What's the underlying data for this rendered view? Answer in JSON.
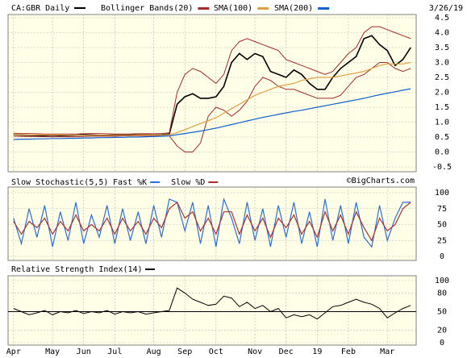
{
  "chart_data": [
    {
      "type": "line",
      "title": "CA:GBR Daily",
      "date": "3/26/19",
      "categories": [
        "Apr",
        null,
        null,
        null,
        null,
        "May",
        null,
        null,
        null,
        "Jun",
        null,
        null,
        null,
        "Jul",
        null,
        null,
        null,
        null,
        "Aug",
        null,
        null,
        null,
        "Sep",
        null,
        null,
        null,
        "Oct",
        null,
        null,
        null,
        null,
        "Nov",
        null,
        null,
        null,
        "Dec",
        null,
        null,
        null,
        "19",
        null,
        null,
        null,
        "Feb",
        null,
        null,
        null,
        null,
        "Mar",
        null,
        null,
        null
      ],
      "ylim": [
        -0.5,
        4.5
      ],
      "yticks": [
        4.5,
        {
          "value": 4,
          "label": "4.0"
        },
        3.5,
        {
          "value": 3,
          "label": "3.0"
        },
        2.5,
        {
          "value": 2,
          "label": "2.0"
        },
        1.5,
        {
          "value": 1,
          "label": "1.0"
        },
        0.5,
        {
          "value": 0,
          "label": "0.0"
        },
        -0.5
      ],
      "grid": true,
      "series": [
        {
          "name": "CA:GBR Daily",
          "color": "#000000",
          "values": [
            0.58,
            0.57,
            0.56,
            0.55,
            0.55,
            0.56,
            0.55,
            0.55,
            0.56,
            0.58,
            0.57,
            0.56,
            0.56,
            0.57,
            0.57,
            0.57,
            0.58,
            0.58,
            0.57,
            0.58,
            0.6,
            1.6,
            1.85,
            1.95,
            1.8,
            1.8,
            1.85,
            2.2,
            3.0,
            3.3,
            3.1,
            3.3,
            3.2,
            2.7,
            2.6,
            2.5,
            2.75,
            2.6,
            2.3,
            2.1,
            2.1,
            2.5,
            2.8,
            3.0,
            3.2,
            3.8,
            3.9,
            3.6,
            3.4,
            2.9,
            3.1,
            3.5
          ]
        },
        {
          "name": "Bollinger Bands(20)",
          "color": "#a52a2a",
          "upper": [
            0.63,
            0.62,
            0.62,
            0.61,
            0.6,
            0.6,
            0.6,
            0.6,
            0.6,
            0.61,
            0.62,
            0.62,
            0.61,
            0.6,
            0.6,
            0.6,
            0.61,
            0.61,
            0.61,
            0.62,
            0.64,
            2.0,
            2.6,
            2.8,
            2.7,
            2.5,
            2.3,
            2.6,
            3.4,
            3.7,
            3.8,
            3.7,
            3.6,
            3.5,
            3.4,
            3.1,
            3.0,
            2.9,
            2.8,
            2.7,
            2.6,
            2.7,
            3.0,
            3.3,
            3.5,
            4.0,
            4.2,
            4.2,
            4.1,
            4.0,
            3.9,
            3.8
          ],
          "lower": [
            0.53,
            0.52,
            0.52,
            0.52,
            0.51,
            0.51,
            0.51,
            0.51,
            0.51,
            0.52,
            0.53,
            0.53,
            0.53,
            0.53,
            0.54,
            0.54,
            0.55,
            0.55,
            0.55,
            0.55,
            0.54,
            0.2,
            0.0,
            0.0,
            0.3,
            1.2,
            1.5,
            1.4,
            1.2,
            1.4,
            1.7,
            2.2,
            2.5,
            2.4,
            2.2,
            2.1,
            2.1,
            2.0,
            1.9,
            1.8,
            1.8,
            1.8,
            1.9,
            2.2,
            2.5,
            2.6,
            2.8,
            3.0,
            3.0,
            2.8,
            2.7,
            2.8
          ]
        },
        {
          "name": "SMA(100)",
          "color": "#e0a040",
          "values": [
            0.58,
            0.58,
            0.57,
            0.57,
            0.57,
            0.57,
            0.57,
            0.56,
            0.56,
            0.56,
            0.56,
            0.56,
            0.56,
            0.56,
            0.56,
            0.56,
            0.57,
            0.57,
            0.57,
            0.57,
            0.58,
            0.65,
            0.75,
            0.85,
            0.95,
            1.05,
            1.15,
            1.3,
            1.45,
            1.6,
            1.75,
            1.9,
            2.0,
            2.1,
            2.2,
            2.25,
            2.3,
            2.4,
            2.45,
            2.5,
            2.5,
            2.5,
            2.55,
            2.6,
            2.65,
            2.7,
            2.8,
            2.9,
            2.95,
            2.95,
            2.95,
            3.0
          ]
        },
        {
          "name": "SMA(200)",
          "color": "#1060d0",
          "values": [
            0.42,
            0.43,
            0.43,
            0.44,
            0.44,
            0.45,
            0.45,
            0.46,
            0.46,
            0.47,
            0.47,
            0.48,
            0.48,
            0.49,
            0.49,
            0.5,
            0.5,
            0.51,
            0.52,
            0.53,
            0.54,
            0.58,
            0.62,
            0.66,
            0.7,
            0.75,
            0.8,
            0.86,
            0.92,
            0.98,
            1.04,
            1.1,
            1.16,
            1.21,
            1.26,
            1.31,
            1.36,
            1.4,
            1.45,
            1.5,
            1.55,
            1.6,
            1.65,
            1.7,
            1.75,
            1.8,
            1.86,
            1.92,
            1.97,
            2.02,
            2.07,
            2.12
          ]
        }
      ]
    },
    {
      "type": "line",
      "title": "Slow Stochastic(5,5)",
      "credit": "©BigCharts.com",
      "ylim": [
        0,
        100
      ],
      "yticks": [
        100,
        75,
        50,
        25,
        0
      ],
      "grid": true,
      "series": [
        {
          "name": "Fast %K",
          "color": "#2a6ee0",
          "values": [
            60,
            20,
            75,
            30,
            80,
            15,
            70,
            25,
            85,
            20,
            65,
            30,
            80,
            20,
            75,
            25,
            70,
            20,
            80,
            30,
            90,
            85,
            40,
            85,
            20,
            80,
            15,
            90,
            60,
            20,
            85,
            25,
            75,
            15,
            80,
            30,
            85,
            20,
            70,
            15,
            90,
            25,
            80,
            20,
            85,
            30,
            15,
            80,
            25,
            60,
            85,
            85
          ]
        },
        {
          "name": "Slow %D",
          "color": "#b03030",
          "values": [
            55,
            35,
            55,
            45,
            60,
            35,
            55,
            40,
            65,
            40,
            50,
            40,
            60,
            35,
            60,
            40,
            55,
            35,
            60,
            45,
            75,
            85,
            60,
            70,
            40,
            60,
            35,
            70,
            70,
            35,
            65,
            40,
            60,
            30,
            60,
            45,
            65,
            35,
            55,
            30,
            70,
            40,
            65,
            35,
            70,
            45,
            25,
            60,
            40,
            50,
            75,
            85
          ]
        }
      ]
    },
    {
      "type": "line",
      "title": "Relative Strength Index(14)",
      "ylim": [
        0,
        100
      ],
      "yticks": [
        100,
        80,
        50,
        20,
        0
      ],
      "grid": true,
      "reference": 50,
      "color": "#000000",
      "values": [
        55,
        50,
        45,
        48,
        52,
        45,
        50,
        48,
        52,
        47,
        50,
        48,
        52,
        46,
        50,
        48,
        50,
        46,
        48,
        50,
        52,
        88,
        80,
        70,
        65,
        60,
        62,
        75,
        72,
        58,
        65,
        55,
        60,
        50,
        55,
        40,
        45,
        42,
        45,
        38,
        48,
        58,
        60,
        65,
        70,
        65,
        62,
        55,
        40,
        48,
        55,
        60
      ]
    }
  ]
}
